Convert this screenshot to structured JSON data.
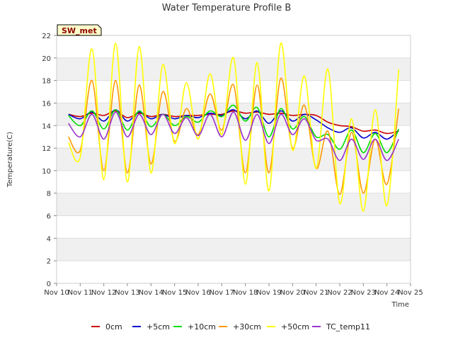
{
  "chart_data": {
    "type": "line",
    "title": "Water Temperature Profile B",
    "xlabel": "Time",
    "ylabel": "Temperature(C)",
    "site_label": "SW_met",
    "x_type": "date",
    "xlim": [
      "Nov 10",
      "Nov 25"
    ],
    "x_ticks": [
      "Nov 10",
      "Nov 11",
      "Nov 12",
      "Nov 13",
      "Nov 14",
      "Nov 15",
      "Nov 16",
      "Nov 17",
      "Nov 18",
      "Nov 19",
      "Nov 20",
      "Nov 21",
      "Nov 22",
      "Nov 23",
      "Nov 24",
      "Nov 25"
    ],
    "ylim": [
      0,
      22
    ],
    "y_ticks": [
      0,
      2,
      4,
      6,
      8,
      10,
      12,
      14,
      16,
      18,
      20,
      22
    ],
    "grid": true,
    "alternating_bands": true,
    "legend_placement": "bottom",
    "x": [
      "Nov 10 12:00",
      "Nov 11 00:00",
      "Nov 11 12:00",
      "Nov 12 00:00",
      "Nov 12 12:00",
      "Nov 13 00:00",
      "Nov 13 12:00",
      "Nov 14 00:00",
      "Nov 14 12:00",
      "Nov 15 00:00",
      "Nov 15 12:00",
      "Nov 16 00:00",
      "Nov 16 12:00",
      "Nov 17 00:00",
      "Nov 17 12:00",
      "Nov 18 00:00",
      "Nov 18 12:00",
      "Nov 19 00:00",
      "Nov 19 12:00",
      "Nov 20 00:00",
      "Nov 20 12:00",
      "Nov 21 00:00",
      "Nov 21 12:00",
      "Nov 22 00:00",
      "Nov 22 12:00",
      "Nov 23 00:00",
      "Nov 23 12:00",
      "Nov 24 00:00",
      "Nov 24 12:00"
    ],
    "series": [
      {
        "name": "0cm",
        "color": "#cc0000",
        "values": [
          15.0,
          14.8,
          15.1,
          14.9,
          15.3,
          14.7,
          15.1,
          14.8,
          15.0,
          14.8,
          14.9,
          14.9,
          15.0,
          15.0,
          15.3,
          15.1,
          15.2,
          15.0,
          15.1,
          14.9,
          15.0,
          14.9,
          14.3,
          14.0,
          13.9,
          13.5,
          13.6,
          13.3,
          13.5
        ]
      },
      {
        "name": "+5cm",
        "color": "#0000cc",
        "values": [
          15.0,
          14.6,
          15.2,
          14.4,
          15.4,
          14.4,
          15.2,
          14.6,
          15.0,
          14.6,
          14.9,
          14.7,
          15.1,
          14.9,
          15.4,
          14.6,
          15.3,
          14.2,
          15.3,
          14.4,
          15.0,
          14.5,
          13.8,
          13.4,
          13.8,
          12.9,
          13.4,
          12.8,
          13.6
        ]
      },
      {
        "name": "+10cm",
        "color": "#00dd00",
        "values": [
          14.9,
          14.0,
          15.3,
          13.7,
          15.4,
          13.6,
          15.3,
          13.9,
          15.0,
          14.0,
          14.8,
          14.3,
          15.3,
          14.8,
          15.8,
          14.4,
          15.6,
          13.0,
          15.5,
          13.7,
          14.8,
          13.0,
          13.2,
          11.9,
          13.6,
          11.6,
          13.3,
          11.6,
          13.7
        ]
      },
      {
        "name": "+30cm",
        "color": "#ff9900",
        "values": [
          13.0,
          11.8,
          18.0,
          10.0,
          18.0,
          9.8,
          17.6,
          10.6,
          17.0,
          12.6,
          15.5,
          13.2,
          16.8,
          13.6,
          17.6,
          9.8,
          17.6,
          9.8,
          18.2,
          12.0,
          15.8,
          10.2,
          13.5,
          7.9,
          13.4,
          8.0,
          12.8,
          8.8,
          15.5
        ]
      },
      {
        "name": "+50cm",
        "color": "#ffff00",
        "values": [
          12.5,
          11.2,
          20.8,
          9.2,
          21.3,
          9.0,
          21.0,
          9.8,
          19.4,
          12.4,
          17.8,
          12.8,
          18.6,
          13.2,
          20.0,
          8.8,
          19.6,
          8.2,
          21.3,
          11.8,
          18.4,
          10.2,
          19.0,
          7.1,
          14.6,
          6.4,
          15.4,
          6.9,
          19.0
        ]
      },
      {
        "name": "TC_temp11",
        "color": "#9933cc",
        "values": [
          14.2,
          13.0,
          15.0,
          12.8,
          15.2,
          13.0,
          15.0,
          13.2,
          15.0,
          13.3,
          14.7,
          13.1,
          15.0,
          13.0,
          15.2,
          12.7,
          15.0,
          12.4,
          15.0,
          13.2,
          14.6,
          12.7,
          12.8,
          10.9,
          12.8,
          11.0,
          12.8,
          10.9,
          12.8
        ]
      }
    ]
  }
}
